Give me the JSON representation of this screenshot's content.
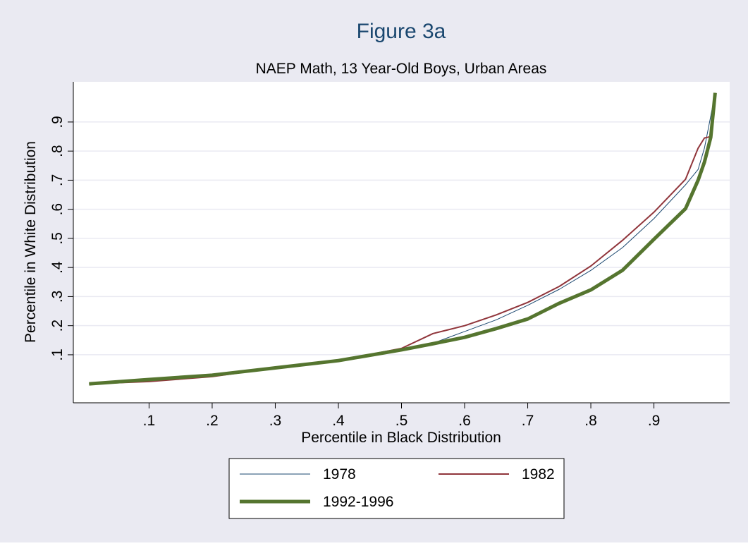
{
  "chart_data": {
    "type": "line",
    "title": "Figure 3a",
    "subtitle": "NAEP Math, 13 Year-Old Boys, Urban Areas",
    "x_label": "Percentile in Black Distribution",
    "y_label": "Percentile in White Distribution",
    "x": [
      0.005,
      0.1,
      0.2,
      0.3,
      0.4,
      0.5,
      0.55,
      0.6,
      0.65,
      0.7,
      0.75,
      0.8,
      0.85,
      0.9,
      0.95,
      0.97,
      0.98,
      0.99,
      0.997
    ],
    "series": [
      {
        "name": "1978",
        "color": "#1a476f",
        "width": 1,
        "values": [
          0,
          0.013,
          0.028,
          0.055,
          0.08,
          0.118,
          0.14,
          0.18,
          0.22,
          0.27,
          0.325,
          0.39,
          0.468,
          0.568,
          0.684,
          0.737,
          0.81,
          0.92,
          1.0
        ]
      },
      {
        "name": "1982",
        "color": "#90353b",
        "width": 2,
        "values": [
          0,
          0.008,
          0.025,
          0.055,
          0.08,
          0.122,
          0.173,
          0.2,
          0.237,
          0.28,
          0.335,
          0.405,
          0.493,
          0.59,
          0.703,
          0.81,
          0.845,
          0.85,
          1.0
        ]
      },
      {
        "name": "1992-1996",
        "color": "#55752f",
        "width": 5,
        "values": [
          0,
          0.015,
          0.03,
          0.055,
          0.08,
          0.117,
          0.138,
          0.16,
          0.19,
          0.223,
          0.277,
          0.323,
          0.39,
          0.497,
          0.602,
          0.7,
          0.762,
          0.847,
          1.0
        ]
      }
    ],
    "xlim": [
      -0.02,
      1.02
    ],
    "ylim": [
      -0.065,
      1.038
    ],
    "xticks": [
      {
        "value": 0.1,
        "label": ".1"
      },
      {
        "value": 0.2,
        "label": ".2"
      },
      {
        "value": 0.3,
        "label": ".3"
      },
      {
        "value": 0.4,
        "label": ".4"
      },
      {
        "value": 0.5,
        "label": ".5"
      },
      {
        "value": 0.6,
        "label": ".6"
      },
      {
        "value": 0.7,
        "label": ".7"
      },
      {
        "value": 0.8,
        "label": ".8"
      },
      {
        "value": 0.9,
        "label": ".9"
      }
    ],
    "yticks": [
      {
        "value": 0.1,
        "label": ".1"
      },
      {
        "value": 0.2,
        "label": ".2"
      },
      {
        "value": 0.3,
        "label": ".3"
      },
      {
        "value": 0.4,
        "label": ".4"
      },
      {
        "value": 0.5,
        "label": ".5"
      },
      {
        "value": 0.6,
        "label": ".6"
      },
      {
        "value": 0.7,
        "label": ".7"
      },
      {
        "value": 0.8,
        "label": ".8"
      },
      {
        "value": 0.9,
        "label": ".9"
      }
    ],
    "grid": true
  }
}
